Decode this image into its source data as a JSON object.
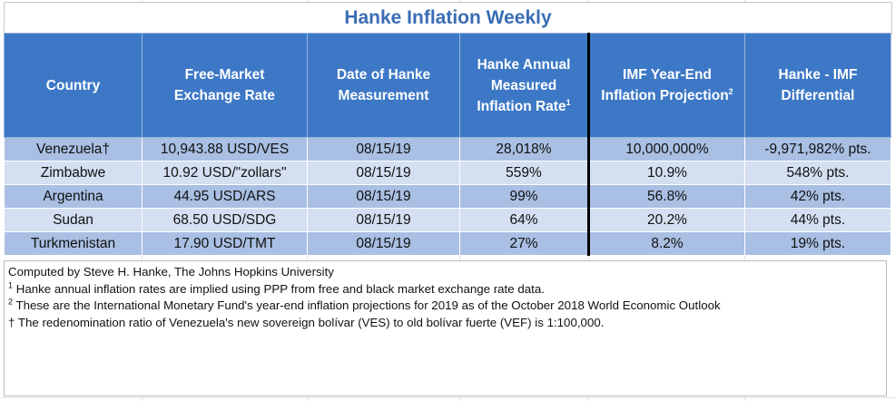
{
  "title": "Hanke Inflation Weekly",
  "headers": {
    "country": "Country",
    "rate_line1": "Free-Market",
    "rate_line2": "Exchange Rate",
    "date_line1": "Date of Hanke",
    "date_line2": "Measurement",
    "annual_line1": "Hanke Annual",
    "annual_line2": "Measured",
    "annual_line3": "Inflation Rate",
    "annual_sup": "1",
    "imf_line1": "IMF Year-End",
    "imf_line2": "Inflation Projection",
    "imf_sup": "2",
    "diff_line1": "Hanke - IMF",
    "diff_line2": "Differential"
  },
  "rows": [
    {
      "country": "Venezuela†",
      "rate": "10,943.88 USD/VES",
      "date": "08/15/19",
      "hanke": "28,018%",
      "imf": "10,000,000%",
      "diff": "-9,971,982% pts."
    },
    {
      "country": "Zimbabwe",
      "rate": "10.92 USD/\"zollars\"",
      "date": "08/15/19",
      "hanke": "559%",
      "imf": "10.9%",
      "diff": "548% pts."
    },
    {
      "country": "Argentina",
      "rate": "44.95 USD/ARS",
      "date": "08/15/19",
      "hanke": "99%",
      "imf": "56.8%",
      "diff": "42% pts."
    },
    {
      "country": "Sudan",
      "rate": "68.50 USD/SDG",
      "date": "08/15/19",
      "hanke": "64%",
      "imf": "20.2%",
      "diff": "44% pts."
    },
    {
      "country": "Turkmenistan",
      "rate": "17.90 USD/TMT",
      "date": "08/15/19",
      "hanke": "27%",
      "imf": "8.2%",
      "diff": "19% pts."
    }
  ],
  "notes": {
    "credit": "Computed by Steve H. Hanke, The Johns Hopkins University",
    "note1_marker": "1",
    "note1": " Hanke annual inflation rates are implied using PPP from free and black market exchange rate data.",
    "note2_marker": "2",
    "note2": " These are the International Monetary Fund's year-end inflation projections for 2019 as of the October 2018 World Economic Outlook",
    "note3": "† The redenomination ratio of Venezuela's new sovereign bolívar (VES) to old bolívar fuerte (VEF) is 1:100,000."
  }
}
